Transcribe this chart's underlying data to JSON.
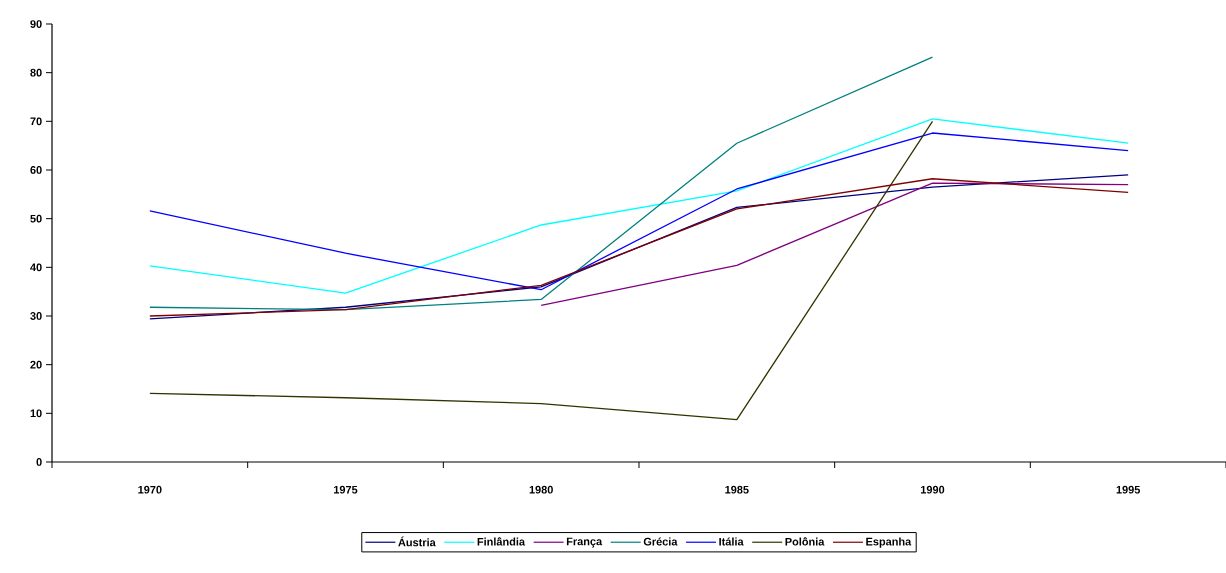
{
  "chart_data": {
    "type": "line",
    "categories": [
      "1970",
      "1975",
      "1980",
      "1985",
      "1990",
      "1995"
    ],
    "ylim": [
      0,
      90
    ],
    "yticks": [
      0,
      10,
      20,
      30,
      40,
      50,
      60,
      70,
      80,
      90
    ],
    "grid": false,
    "legend": "bottom",
    "marker": "none",
    "line_style": "solid",
    "series": [
      {
        "name": "Áustria",
        "color": "#000080",
        "values": [
          29.4,
          31.8,
          36.0,
          52.3,
          56.5,
          59.0
        ]
      },
      {
        "name": "Finlândia",
        "color": "#00ffff",
        "values": [
          40.3,
          34.7,
          48.7,
          55.7,
          70.5,
          65.5
        ]
      },
      {
        "name": "França",
        "color": "#800080",
        "values": [
          null,
          null,
          32.2,
          40.4,
          57.3,
          57.0
        ]
      },
      {
        "name": "Grécia",
        "color": "#008080",
        "values": [
          31.8,
          31.3,
          33.4,
          65.5,
          83.2,
          null
        ]
      },
      {
        "name": "Itália",
        "color": "#0000ff",
        "values": [
          51.6,
          42.9,
          35.4,
          56.1,
          67.6,
          64.0
        ]
      },
      {
        "name": "Polônia",
        "color": "#333300",
        "values": [
          14.1,
          13.2,
          12.0,
          8.7,
          70.0,
          null
        ]
      },
      {
        "name": "Espanha",
        "color": "#800000",
        "values": [
          30.0,
          31.3,
          36.3,
          52.0,
          58.2,
          55.4
        ]
      }
    ]
  }
}
